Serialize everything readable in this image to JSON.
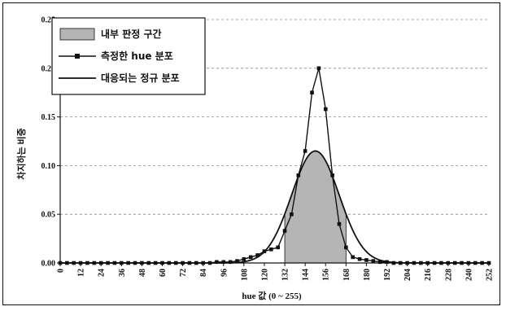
{
  "chart_data": {
    "type": "line",
    "title": "",
    "xlabel": "hue 값 (0 ~ 255)",
    "ylabel": "차지하는 비중",
    "xlim": [
      0,
      252
    ],
    "ylim": [
      0,
      0.25
    ],
    "y_ticks": [
      "0.00",
      "0.05",
      "0.10",
      "0.15",
      "0.20",
      "0.25"
    ],
    "x_ticks": [
      "0",
      "12",
      "24",
      "36",
      "48",
      "60",
      "72",
      "84",
      "96",
      "108",
      "120",
      "132",
      "144",
      "156",
      "168",
      "180",
      "192",
      "204",
      "216",
      "228",
      "240",
      "252"
    ],
    "grid": "horizontal dashed",
    "legend": {
      "placement": "top-left"
    },
    "colors": {
      "area": "#b5b5b5",
      "line": "#111111"
    },
    "series": [
      {
        "name": "내부 판정 구간",
        "kind": "area",
        "range": [
          132,
          168
        ]
      },
      {
        "name": "측정한 hue 분포",
        "kind": "line-markers",
        "x": [
          0,
          4,
          8,
          12,
          16,
          20,
          24,
          28,
          32,
          36,
          40,
          44,
          48,
          52,
          56,
          60,
          64,
          68,
          72,
          76,
          80,
          84,
          88,
          92,
          96,
          100,
          104,
          108,
          112,
          116,
          120,
          124,
          128,
          132,
          136,
          140,
          144,
          148,
          152,
          156,
          160,
          164,
          168,
          172,
          176,
          180,
          184,
          188,
          192,
          196,
          200,
          204,
          208,
          212,
          216,
          220,
          224,
          228,
          232,
          236,
          240,
          244,
          248,
          252
        ],
        "y": [
          0,
          0,
          0,
          0,
          0,
          0,
          0,
          0,
          0,
          0,
          0,
          0,
          0,
          0,
          0,
          0,
          0,
          0,
          0,
          0,
          0,
          0,
          0,
          0.001,
          0.001,
          0.001,
          0.002,
          0.004,
          0.006,
          0.008,
          0.012,
          0.014,
          0.016,
          0.033,
          0.05,
          0.09,
          0.115,
          0.175,
          0.2,
          0.158,
          0.09,
          0.04,
          0.016,
          0.006,
          0.004,
          0.003,
          0.002,
          0.001,
          0.001,
          0,
          0,
          0,
          0,
          0,
          0,
          0,
          0,
          0,
          0,
          0,
          0,
          0,
          0,
          0
        ]
      },
      {
        "name": "대응되는 정규 분포",
        "kind": "normal-curve",
        "mean": 150,
        "sd": 14,
        "peak": 0.115
      }
    ]
  }
}
